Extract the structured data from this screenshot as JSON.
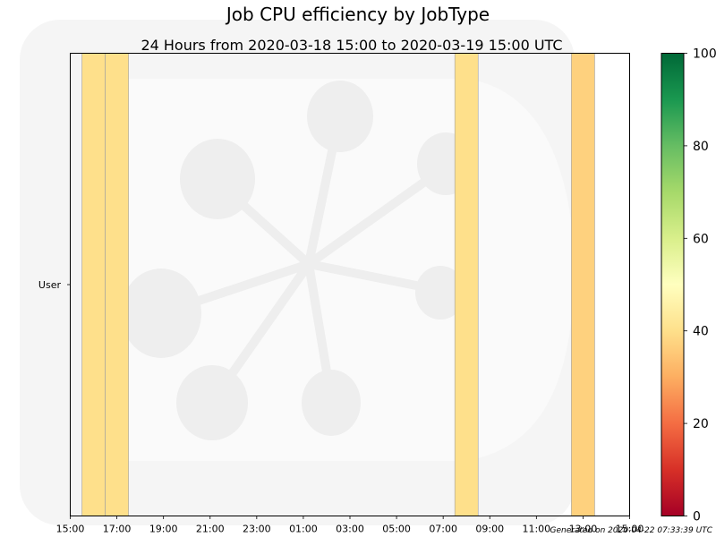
{
  "title": "Job CPU efficiency by JobType",
  "subtitle": "24 Hours from 2020-03-18 15:00 to 2020-03-19 15:00 UTC",
  "footer": "Generated on 2020-04-22 07:33:39 UTC",
  "chart_data": {
    "type": "heatmap",
    "title": "Job CPU efficiency by JobType",
    "subtitle": "24 Hours from 2020-03-18 15:00 to 2020-03-19 15:00 UTC",
    "rows": [
      "User"
    ],
    "x_tick_labels": [
      "15:00",
      "17:00",
      "19:00",
      "21:00",
      "23:00",
      "01:00",
      "03:00",
      "05:00",
      "07:00",
      "09:00",
      "11:00",
      "13:00",
      "15:00"
    ],
    "x_range_hours": [
      0,
      24
    ],
    "cells": [
      {
        "row": "User",
        "start": "15:30",
        "end": "16:30",
        "efficiency": 40
      },
      {
        "row": "User",
        "start": "16:30",
        "end": "17:30",
        "efficiency": 40
      },
      {
        "row": "User",
        "start": "07:30",
        "end": "08:30",
        "efficiency": 40
      },
      {
        "row": "User",
        "start": "12:30",
        "end": "13:30",
        "efficiency": 37
      }
    ],
    "colorbar": {
      "min": 0,
      "max": 100,
      "ticks": [
        0,
        20,
        40,
        60,
        80,
        100
      ],
      "colormap": "RdYlGn",
      "stops": [
        "#a50026",
        "#d73027",
        "#f46d43",
        "#fdae61",
        "#fee08b",
        "#ffffbf",
        "#d9ef8b",
        "#a6d96a",
        "#66bd63",
        "#1a9850",
        "#006837"
      ]
    },
    "grid": false
  }
}
